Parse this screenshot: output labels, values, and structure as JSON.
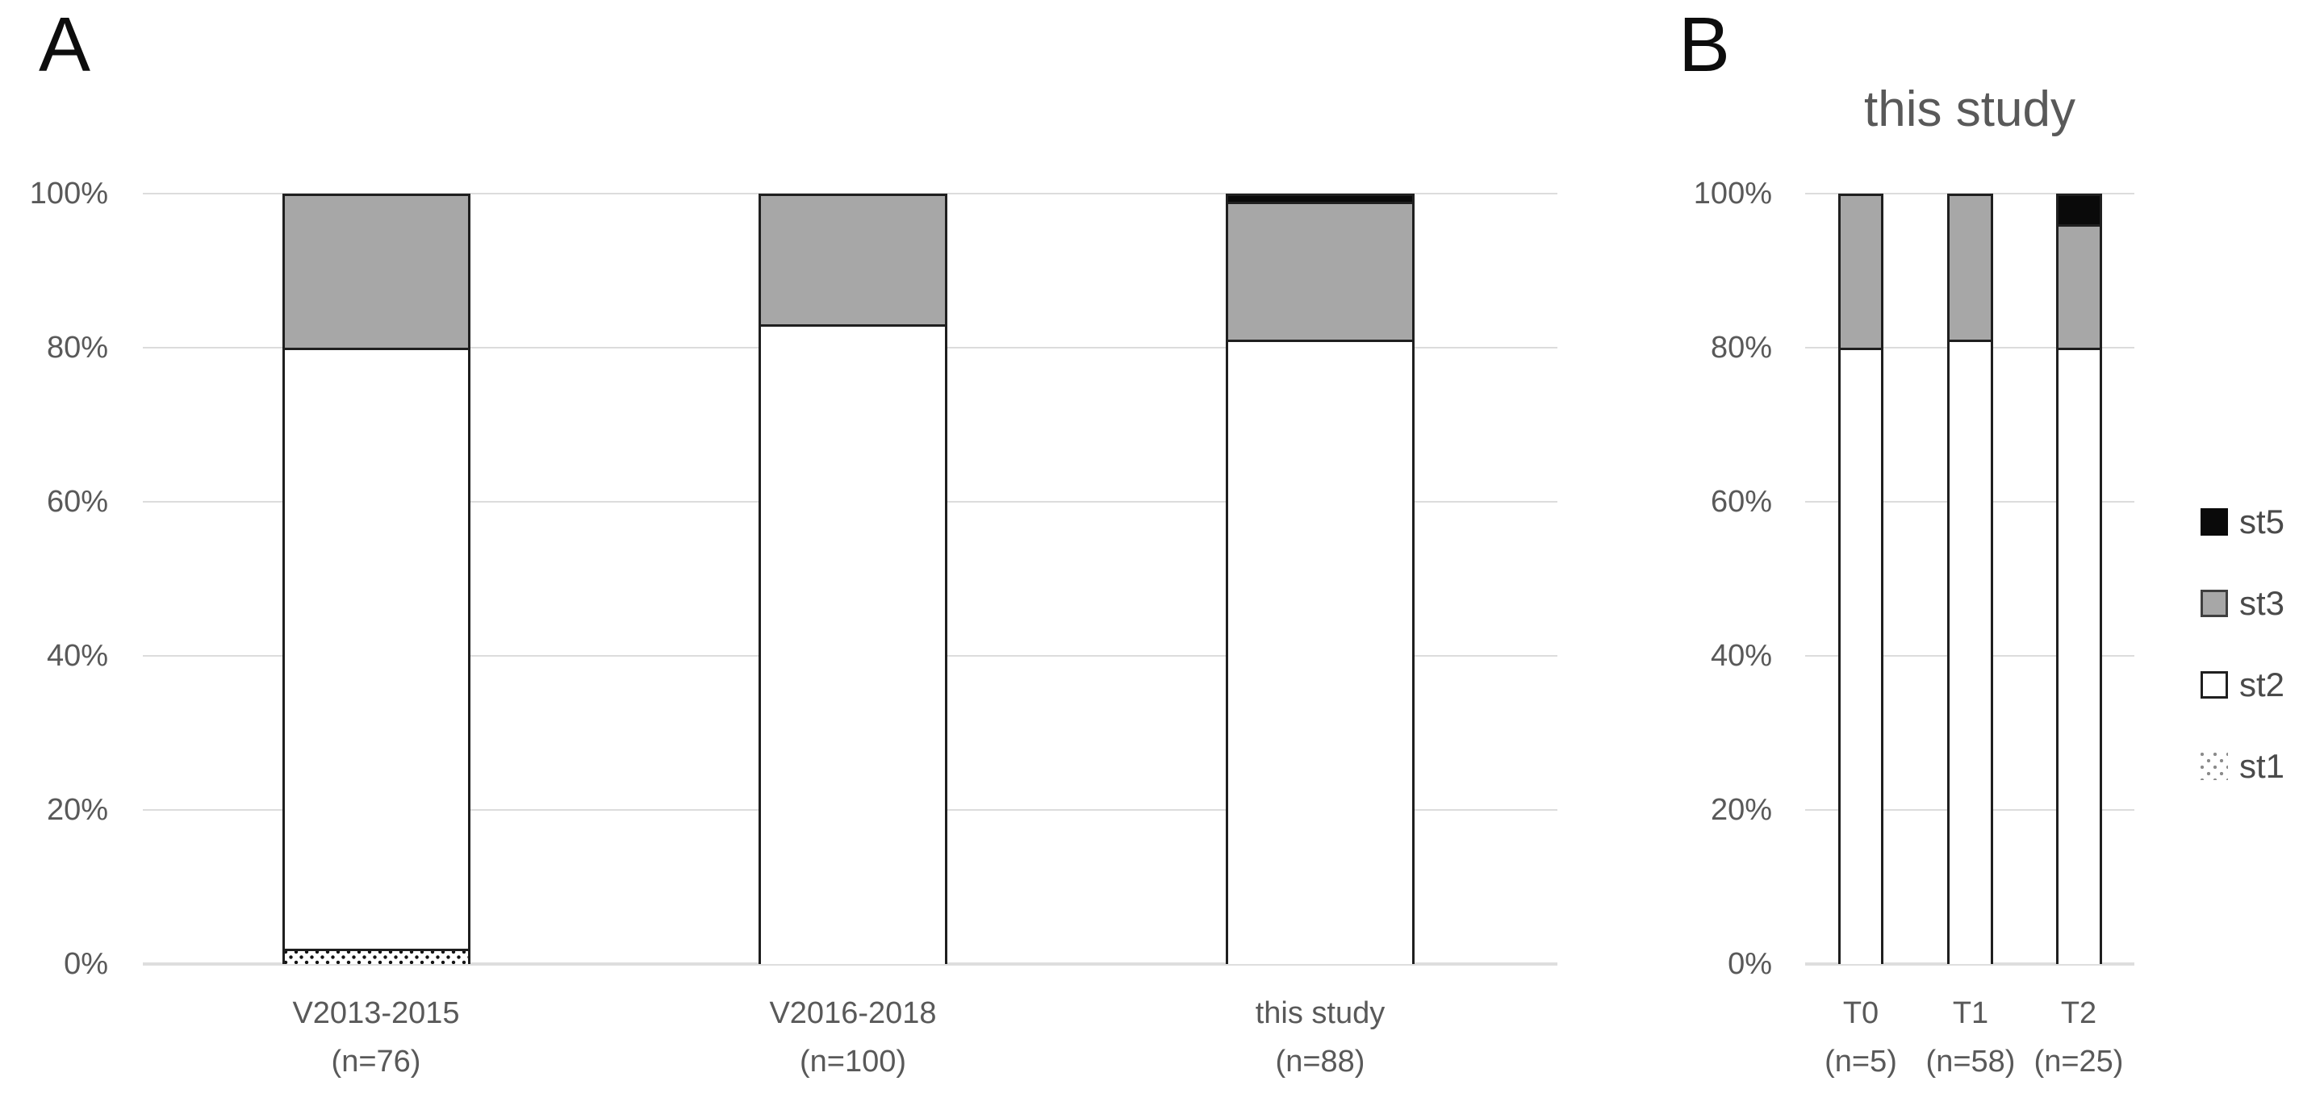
{
  "figure": {
    "panel_a_label": "A",
    "panel_b_label": "B"
  },
  "legend": {
    "position": "right",
    "items": [
      {
        "label": "st5",
        "swatch": "solid-black",
        "color": "#0a0a0a"
      },
      {
        "label": "st3",
        "swatch": "solid-gray",
        "color": "#a7a7a7"
      },
      {
        "label": "st2",
        "swatch": "white-outlined",
        "color": "#ffffff"
      },
      {
        "label": "st1",
        "swatch": "dotted-pattern",
        "color": "#ffffff"
      }
    ]
  },
  "colors": {
    "gray_fill": "#a7a7a7",
    "black_fill": "#0a0a0a",
    "bar_border": "#1f1f1f",
    "axis_text": "#595959",
    "gridline": "#dcdcdc",
    "panel_letter": "#0d0d0d"
  },
  "chart_data": [
    {
      "panel": "A",
      "type": "bar",
      "stacked": true,
      "units": "percent",
      "ylim": [
        0,
        100
      ],
      "grid": true,
      "y_tick_labels": [
        "100%",
        "80%",
        "60%",
        "40%",
        "20%",
        "0%"
      ],
      "categories": [
        "V2013-2015",
        "V2016-2018",
        "this study"
      ],
      "category_sublabels": [
        "(n=76)",
        "(n=100)",
        "(n=88)"
      ],
      "series": [
        {
          "name": "st1",
          "values": [
            2,
            0,
            0
          ]
        },
        {
          "name": "st2",
          "values": [
            78,
            83,
            81
          ]
        },
        {
          "name": "st3",
          "values": [
            20,
            17,
            18
          ]
        },
        {
          "name": "st5",
          "values": [
            0,
            0,
            1
          ]
        }
      ]
    },
    {
      "panel": "B",
      "type": "bar",
      "stacked": true,
      "units": "percent",
      "title": "this study",
      "ylim": [
        0,
        100
      ],
      "grid": true,
      "y_tick_labels": [
        "100%",
        "80%",
        "60%",
        "40%",
        "20%",
        "0%"
      ],
      "categories": [
        "T0",
        "T1",
        "T2"
      ],
      "category_sublabels": [
        "(n=5)",
        "(n=58)",
        "(n=25)"
      ],
      "series": [
        {
          "name": "st1",
          "values": [
            0,
            0,
            0
          ]
        },
        {
          "name": "st2",
          "values": [
            80,
            81,
            80
          ]
        },
        {
          "name": "st3",
          "values": [
            20,
            19,
            16
          ]
        },
        {
          "name": "st5",
          "values": [
            0,
            0,
            4
          ]
        }
      ]
    }
  ]
}
